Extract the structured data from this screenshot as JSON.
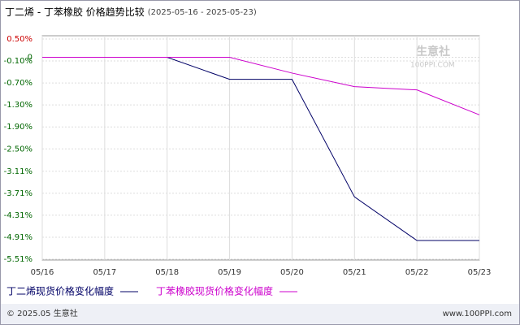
{
  "chart_data": {
    "type": "line",
    "title": "丁二烯 - 丁苯橡胶 价格趋势比较",
    "subtitle": "(2025-05-16 - 2025-05-23)",
    "categories": [
      "05/16",
      "05/17",
      "05/18",
      "05/19",
      "05/20",
      "05/21",
      "05/22",
      "05/23"
    ],
    "series": [
      {
        "name": "丁二烯现货价格变化幅度",
        "color": "#000066",
        "values": [
          0,
          0,
          0,
          -0.6,
          -0.6,
          -3.81,
          -5.0,
          -5.0
        ]
      },
      {
        "name": "丁苯橡胶现货价格变化幅度",
        "color": "#cc00cc",
        "values": [
          0,
          0,
          0,
          0,
          -0.43,
          -0.8,
          -0.89,
          -1.57
        ]
      }
    ],
    "ylim": [
      -5.51,
      0.5
    ],
    "yticks": [
      {
        "value": 0.5,
        "label": "0.50%"
      },
      0,
      {
        "value": -0.1,
        "label": "-0.10%"
      },
      {
        "value": -0.7,
        "label": "-0.70%"
      },
      {
        "value": -1.3,
        "label": "-1.30%"
      },
      {
        "value": -1.9,
        "label": "-1.90%"
      },
      {
        "value": -2.5,
        "label": "-2.50%"
      },
      {
        "value": -3.11,
        "label": "-3.11%"
      },
      {
        "value": -3.71,
        "label": "-3.71%"
      },
      {
        "value": -4.31,
        "label": "-4.31%"
      },
      {
        "value": -4.91,
        "label": "-4.91%"
      },
      {
        "value": -5.51,
        "label": "-5.51%"
      }
    ],
    "grid": true,
    "watermark": {
      "brand": "生意社",
      "site": "100PPI.COM"
    },
    "footer": {
      "left": "© 2025.05 生意社",
      "right": "www.100PPI.com"
    }
  }
}
